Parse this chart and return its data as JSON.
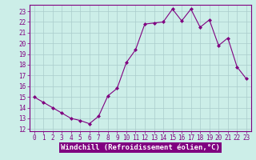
{
  "x": [
    0,
    1,
    2,
    3,
    4,
    5,
    6,
    7,
    8,
    9,
    10,
    11,
    12,
    13,
    14,
    15,
    16,
    17,
    18,
    19,
    20,
    21,
    22,
    23
  ],
  "y": [
    15.0,
    14.5,
    14.0,
    13.5,
    13.0,
    12.8,
    12.5,
    13.2,
    15.1,
    15.8,
    18.2,
    19.4,
    21.8,
    21.9,
    22.0,
    23.2,
    22.1,
    23.2,
    21.5,
    22.2,
    19.8,
    20.5,
    17.8,
    16.7
  ],
  "line_color": "#800080",
  "marker": "D",
  "marker_size": 2.0,
  "bg_color": "#cceee8",
  "grid_color": "#aacccc",
  "xlabel": "Windchill (Refroidissement éolien,°C)",
  "xlim": [
    -0.5,
    23.5
  ],
  "ylim": [
    11.8,
    23.6
  ],
  "yticks": [
    12,
    13,
    14,
    15,
    16,
    17,
    18,
    19,
    20,
    21,
    22,
    23
  ],
  "xticks": [
    0,
    1,
    2,
    3,
    4,
    5,
    6,
    7,
    8,
    9,
    10,
    11,
    12,
    13,
    14,
    15,
    16,
    17,
    18,
    19,
    20,
    21,
    22,
    23
  ],
  "tick_color": "#800080",
  "label_color": "#800080",
  "tick_fontsize": 5.5,
  "xlabel_fontsize": 6.5,
  "spine_color": "#800080",
  "xlabel_bg": "#800080",
  "xlabel_text_color": "#ffffff"
}
